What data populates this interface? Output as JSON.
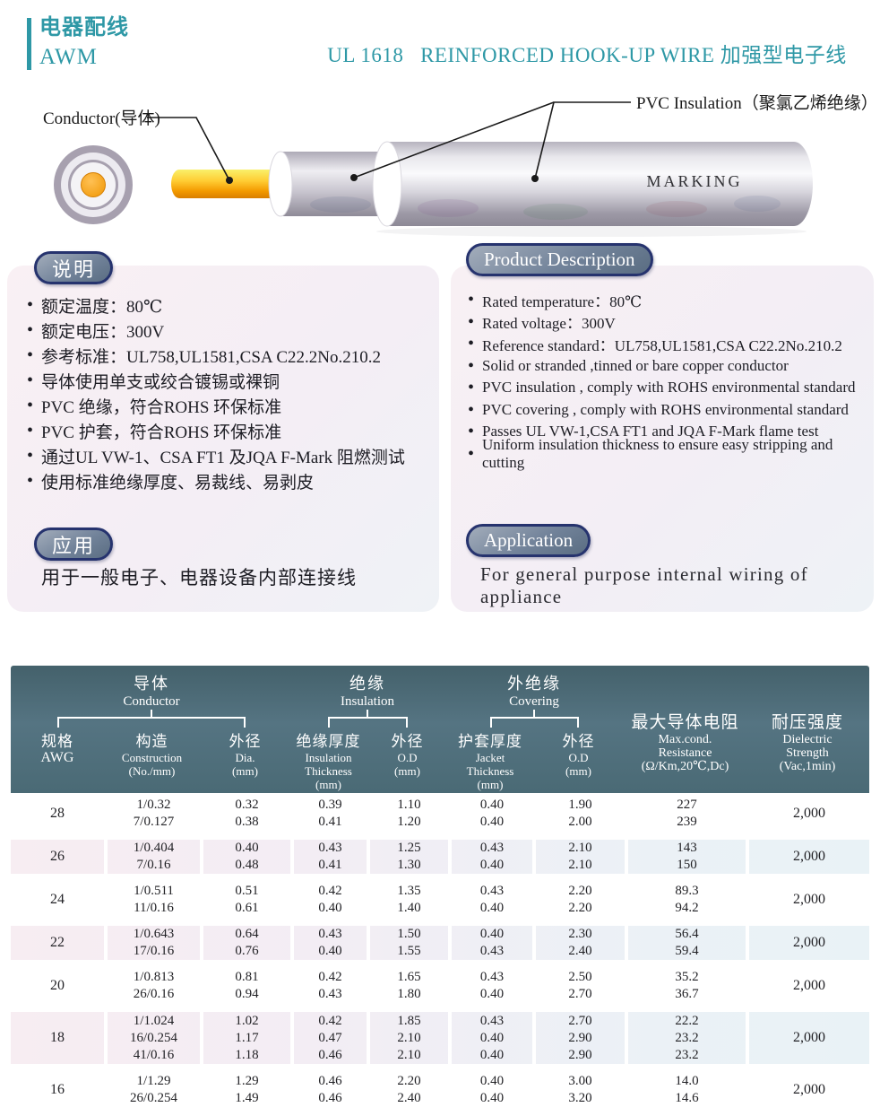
{
  "colors": {
    "accent_teal": "#2e98a6",
    "table_header_bg": "#4e6d78",
    "badge_border": "#26336e",
    "badge_fill": "#72839a",
    "shaded_row_pink": "#f7edf2",
    "shaded_row_blue": "#e9f2f6",
    "conductor_yellow": "#ffcc33",
    "conductor_orange": "#ef9400"
  },
  "brand": {
    "line1": "电器配线",
    "line2": "AWM"
  },
  "title": "UL 1618   REINFORCED HOOK-UP WIRE 加强型电子线",
  "diagram": {
    "conductor_label": "Conductor(导体)",
    "insulation_label": "PVC Insulation（聚氯乙烯绝缘）",
    "marking": "MARKING"
  },
  "description_cn": {
    "badge": "说明",
    "items": [
      "额定温度：80℃",
      "额定电压：300V",
      "参考标准：UL758,UL1581,CSA C22.2No.210.2",
      "导体使用单支或绞合镀锡或裸铜",
      "PVC 绝缘，符合ROHS 环保标准",
      "PVC 护套，符合ROHS 环保标准",
      "通过UL VW-1、CSA FT1 及JQA F-Mark 阻燃测试",
      "使用标准绝缘厚度、易裁线、易剥皮"
    ]
  },
  "description_en": {
    "badge": "Product Description",
    "items": [
      "Rated temperature：80℃",
      "Rated voltage：300V",
      "Reference standard：UL758,UL1581,CSA C22.2No.210.2",
      "Solid or stranded ,tinned or bare copper conductor",
      "PVC insulation , comply with ROHS environmental standard",
      "PVC covering , comply with ROHS environmental standard",
      "Passes UL VW-1,CSA FT1 and JQA F-Mark flame test",
      "Uniform insulation thickness to ensure easy stripping and cutting"
    ]
  },
  "application_cn": {
    "badge": "应用",
    "text": "用于一般电子、电器设备内部连接线"
  },
  "application_en": {
    "badge": "Application",
    "text": "For general purpose internal wiring of appliance"
  },
  "table": {
    "header": {
      "groups": [
        {
          "cn": "导体",
          "en": "Conductor"
        },
        {
          "cn": "绝缘",
          "en": "Insulation"
        },
        {
          "cn": "外绝缘",
          "en": "Covering"
        }
      ],
      "cols": [
        {
          "cn": "规格",
          "en1": "AWG"
        },
        {
          "cn": "构造",
          "en1": "Construction",
          "en2": "(No./mm)"
        },
        {
          "cn": "外径",
          "en1": "Dia.",
          "en2": "(mm)"
        },
        {
          "cn": "绝缘厚度",
          "en1": "Insulation",
          "en2": "Thickness",
          "en3": "(mm)"
        },
        {
          "cn": "外径",
          "en1": "O.D",
          "en2": "(mm)"
        },
        {
          "cn": "护套厚度",
          "en1": "Jacket",
          "en2": "Thickness",
          "en3": "(mm)"
        },
        {
          "cn": "外径",
          "en1": "O.D",
          "en2": "(mm)"
        },
        {
          "cn": "最大导体电阻",
          "en1": "Max.cond.",
          "en2": "Resistance",
          "en3": "(Ω/Km,20℃,Dc)"
        },
        {
          "cn": "耐压强度",
          "en1": "Dielectric",
          "en2": "Strength",
          "en3": "(Vac,1min)"
        }
      ]
    },
    "rows": [
      {
        "awg": "28",
        "shaded": false,
        "dielectric": "2,000",
        "lines": [
          [
            "1/0.32",
            "0.32",
            "0.39",
            "1.10",
            "0.40",
            "1.90",
            "227"
          ],
          [
            "7/0.127",
            "0.38",
            "0.41",
            "1.20",
            "0.40",
            "2.00",
            "239"
          ]
        ]
      },
      {
        "awg": "26",
        "shaded": true,
        "dielectric": "2,000",
        "lines": [
          [
            "1/0.404",
            "0.40",
            "0.43",
            "1.25",
            "0.43",
            "2.10",
            "143"
          ],
          [
            "7/0.16",
            "0.48",
            "0.41",
            "1.30",
            "0.40",
            "2.10",
            "150"
          ]
        ]
      },
      {
        "awg": "24",
        "shaded": false,
        "dielectric": "2,000",
        "lines": [
          [
            "1/0.511",
            "0.51",
            "0.42",
            "1.35",
            "0.43",
            "2.20",
            "89.3"
          ],
          [
            "11/0.16",
            "0.61",
            "0.40",
            "1.40",
            "0.40",
            "2.20",
            "94.2"
          ]
        ]
      },
      {
        "awg": "22",
        "shaded": true,
        "dielectric": "2,000",
        "lines": [
          [
            "1/0.643",
            "0.64",
            "0.43",
            "1.50",
            "0.40",
            "2.30",
            "56.4"
          ],
          [
            "17/0.16",
            "0.76",
            "0.40",
            "1.55",
            "0.43",
            "2.40",
            "59.4"
          ]
        ]
      },
      {
        "awg": "20",
        "shaded": false,
        "dielectric": "2,000",
        "lines": [
          [
            "1/0.813",
            "0.81",
            "0.42",
            "1.65",
            "0.43",
            "2.50",
            "35.2"
          ],
          [
            "26/0.16",
            "0.94",
            "0.43",
            "1.80",
            "0.40",
            "2.70",
            "36.7"
          ]
        ]
      },
      {
        "awg": "18",
        "shaded": true,
        "dielectric": "2,000",
        "lines": [
          [
            "1/1.024",
            "1.02",
            "0.42",
            "1.85",
            "0.43",
            "2.70",
            "22.2"
          ],
          [
            "16/0.254",
            "1.17",
            "0.47",
            "2.10",
            "0.40",
            "2.90",
            "23.2"
          ],
          [
            "41/0.16",
            "1.18",
            "0.46",
            "2.10",
            "0.40",
            "2.90",
            "23.2"
          ]
        ]
      },
      {
        "awg": "16",
        "shaded": false,
        "dielectric": "2,000",
        "lines": [
          [
            "1/1.29",
            "1.29",
            "0.46",
            "2.20",
            "0.40",
            "3.00",
            "14.0"
          ],
          [
            "26/0.254",
            "1.49",
            "0.46",
            "2.40",
            "0.40",
            "3.20",
            "14.6"
          ]
        ]
      }
    ]
  }
}
